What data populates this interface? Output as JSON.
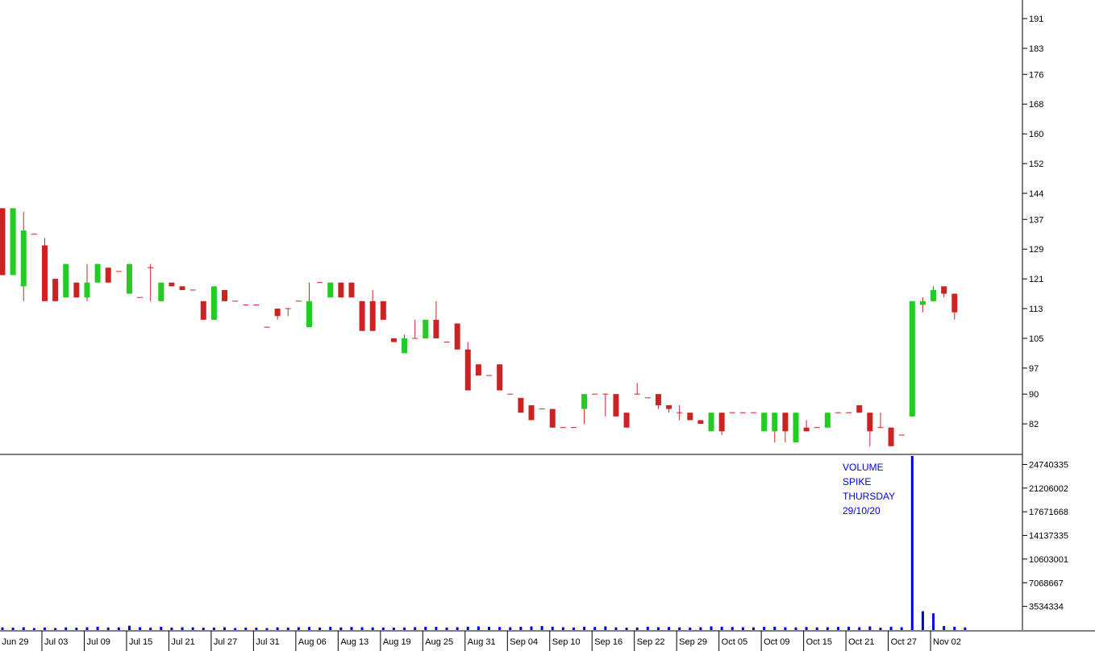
{
  "colors": {
    "background": "#ffffff",
    "up_candle": "#22cc22",
    "down_candle": "#cc2222",
    "wick": "#cc2222",
    "volume": "#0000ee",
    "axis": "#000000",
    "annotation": "#0000ee"
  },
  "annotation": {
    "lines": [
      "VOLUME",
      "SPIKE",
      "THURSDAY",
      "29/10/20"
    ]
  },
  "chart_data": [
    {
      "type": "candlestick",
      "name": "price",
      "y_axis_side": "right",
      "ylim": [
        74,
        196
      ],
      "yticks": [
        "191",
        "183",
        "176",
        "168",
        "160",
        "152",
        "144",
        "137",
        "129",
        "121",
        "113",
        "105",
        "97",
        "90",
        "82"
      ],
      "ytick_values": [
        191,
        183,
        176,
        168,
        160,
        152,
        144,
        137,
        129,
        121,
        113,
        105,
        97,
        90,
        82
      ],
      "x_labels": [
        "Jun 29",
        "Jul 03",
        "Jul 09",
        "Jul 15",
        "Jul 21",
        "Jul 27",
        "Jul 31",
        "Aug 06",
        "Aug 13",
        "Aug 19",
        "Aug 25",
        "Aug 31",
        "Sep 04",
        "Sep 10",
        "Sep 16",
        "Sep 22",
        "Sep 29",
        "Oct 05",
        "Oct 09",
        "Oct 15",
        "Oct 21",
        "Oct 27",
        "Nov 02"
      ],
      "candles": [
        {
          "o": 140,
          "h": 140,
          "l": 122,
          "c": 122
        },
        {
          "o": 122,
          "h": 140,
          "l": 122,
          "c": 140
        },
        {
          "o": 119,
          "h": 139,
          "l": 115,
          "c": 134
        },
        {
          "o": 133,
          "h": 133,
          "l": 133,
          "c": 133
        },
        {
          "o": 130,
          "h": 132,
          "l": 115,
          "c": 115
        },
        {
          "o": 121,
          "h": 121,
          "l": 115,
          "c": 115
        },
        {
          "o": 116,
          "h": 125,
          "l": 116,
          "c": 125
        },
        {
          "o": 120,
          "h": 120,
          "l": 116,
          "c": 116
        },
        {
          "o": 116,
          "h": 125,
          "l": 115,
          "c": 120
        },
        {
          "o": 120,
          "h": 125,
          "l": 120,
          "c": 125
        },
        {
          "o": 124,
          "h": 124,
          "l": 120,
          "c": 120
        },
        {
          "o": 123,
          "h": 123,
          "l": 123,
          "c": 123
        },
        {
          "o": 117,
          "h": 125,
          "l": 117,
          "c": 125
        },
        {
          "o": 116,
          "h": 116,
          "l": 116,
          "c": 116
        },
        {
          "o": 124,
          "h": 125,
          "l": 115,
          "c": 124
        },
        {
          "o": 115,
          "h": 120,
          "l": 115,
          "c": 120
        },
        {
          "o": 120,
          "h": 120,
          "l": 119,
          "c": 119
        },
        {
          "o": 119,
          "h": 119,
          "l": 118,
          "c": 118
        },
        {
          "o": 118,
          "h": 118,
          "l": 118,
          "c": 118
        },
        {
          "o": 115,
          "h": 115,
          "l": 110,
          "c": 110
        },
        {
          "o": 110,
          "h": 119,
          "l": 110,
          "c": 119
        },
        {
          "o": 118,
          "h": 118,
          "l": 115,
          "c": 115
        },
        {
          "o": 115,
          "h": 115,
          "l": 115,
          "c": 115
        },
        {
          "o": 114,
          "h": 114,
          "l": 114,
          "c": 114
        },
        {
          "o": 114,
          "h": 114,
          "l": 114,
          "c": 114
        },
        {
          "o": 108,
          "h": 108,
          "l": 108,
          "c": 108
        },
        {
          "o": 113,
          "h": 113,
          "l": 110,
          "c": 111
        },
        {
          "o": 113,
          "h": 113,
          "l": 111,
          "c": 113
        },
        {
          "o": 115,
          "h": 115,
          "l": 115,
          "c": 115
        },
        {
          "o": 108,
          "h": 120,
          "l": 108,
          "c": 115
        },
        {
          "o": 120,
          "h": 120,
          "l": 120,
          "c": 120
        },
        {
          "o": 116,
          "h": 120,
          "l": 116,
          "c": 120
        },
        {
          "o": 120,
          "h": 120,
          "l": 116,
          "c": 116
        },
        {
          "o": 120,
          "h": 120,
          "l": 116,
          "c": 116
        },
        {
          "o": 115,
          "h": 115,
          "l": 107,
          "c": 107
        },
        {
          "o": 115,
          "h": 118,
          "l": 107,
          "c": 107
        },
        {
          "o": 115,
          "h": 115,
          "l": 110,
          "c": 110
        },
        {
          "o": 105,
          "h": 105,
          "l": 104,
          "c": 104
        },
        {
          "o": 101,
          "h": 106,
          "l": 101,
          "c": 105
        },
        {
          "o": 105,
          "h": 110,
          "l": 105,
          "c": 105
        },
        {
          "o": 105,
          "h": 110,
          "l": 105,
          "c": 110
        },
        {
          "o": 110,
          "h": 115,
          "l": 105,
          "c": 105
        },
        {
          "o": 104,
          "h": 104,
          "l": 104,
          "c": 104
        },
        {
          "o": 109,
          "h": 109,
          "l": 102,
          "c": 102
        },
        {
          "o": 102,
          "h": 104,
          "l": 91,
          "c": 91
        },
        {
          "o": 98,
          "h": 98,
          "l": 95,
          "c": 95
        },
        {
          "o": 95,
          "h": 95,
          "l": 95,
          "c": 95
        },
        {
          "o": 98,
          "h": 98,
          "l": 91,
          "c": 91
        },
        {
          "o": 90,
          "h": 90,
          "l": 90,
          "c": 90
        },
        {
          "o": 89,
          "h": 89,
          "l": 85,
          "c": 85
        },
        {
          "o": 87,
          "h": 87,
          "l": 83,
          "c": 83
        },
        {
          "o": 86,
          "h": 86,
          "l": 86,
          "c": 86
        },
        {
          "o": 86,
          "h": 86,
          "l": 81,
          "c": 81
        },
        {
          "o": 81,
          "h": 81,
          "l": 81,
          "c": 81
        },
        {
          "o": 81,
          "h": 81,
          "l": 81,
          "c": 81
        },
        {
          "o": 86,
          "h": 90,
          "l": 82,
          "c": 90
        },
        {
          "o": 90,
          "h": 90,
          "l": 90,
          "c": 90
        },
        {
          "o": 90,
          "h": 90,
          "l": 84,
          "c": 90
        },
        {
          "o": 90,
          "h": 90,
          "l": 84,
          "c": 84
        },
        {
          "o": 85,
          "h": 85,
          "l": 81,
          "c": 81
        },
        {
          "o": 90,
          "h": 93,
          "l": 90,
          "c": 90
        },
        {
          "o": 89,
          "h": 89,
          "l": 89,
          "c": 89
        },
        {
          "o": 90,
          "h": 90,
          "l": 86,
          "c": 87
        },
        {
          "o": 87,
          "h": 87,
          "l": 85,
          "c": 86
        },
        {
          "o": 85,
          "h": 87,
          "l": 83,
          "c": 85
        },
        {
          "o": 85,
          "h": 85,
          "l": 83,
          "c": 83
        },
        {
          "o": 83,
          "h": 83,
          "l": 82,
          "c": 82
        },
        {
          "o": 80,
          "h": 85,
          "l": 80,
          "c": 85
        },
        {
          "o": 85,
          "h": 85,
          "l": 79,
          "c": 80
        },
        {
          "o": 85,
          "h": 85,
          "l": 85,
          "c": 85
        },
        {
          "o": 85,
          "h": 85,
          "l": 85,
          "c": 85
        },
        {
          "o": 85,
          "h": 85,
          "l": 85,
          "c": 85
        },
        {
          "o": 80,
          "h": 85,
          "l": 80,
          "c": 85
        },
        {
          "o": 80,
          "h": 85,
          "l": 77,
          "c": 85
        },
        {
          "o": 85,
          "h": 85,
          "l": 77,
          "c": 80
        },
        {
          "o": 77,
          "h": 85,
          "l": 77,
          "c": 85
        },
        {
          "o": 81,
          "h": 83,
          "l": 80,
          "c": 80
        },
        {
          "o": 81,
          "h": 81,
          "l": 81,
          "c": 81
        },
        {
          "o": 81,
          "h": 85,
          "l": 81,
          "c": 85
        },
        {
          "o": 85,
          "h": 85,
          "l": 85,
          "c": 85
        },
        {
          "o": 85,
          "h": 85,
          "l": 85,
          "c": 85
        },
        {
          "o": 87,
          "h": 87,
          "l": 85,
          "c": 85
        },
        {
          "o": 85,
          "h": 85,
          "l": 76,
          "c": 80
        },
        {
          "o": 81,
          "h": 85,
          "l": 81,
          "c": 81
        },
        {
          "o": 81,
          "h": 81,
          "l": 76,
          "c": 76
        },
        {
          "o": 79,
          "h": 79,
          "l": 79,
          "c": 79
        },
        {
          "o": 84,
          "h": 115,
          "l": 84,
          "c": 115
        },
        {
          "o": 114,
          "h": 116,
          "l": 112,
          "c": 115
        },
        {
          "o": 115,
          "h": 119,
          "l": 115,
          "c": 118
        },
        {
          "o": 119,
          "h": 119,
          "l": 116,
          "c": 117
        },
        {
          "o": 117,
          "h": 117,
          "l": 110,
          "c": 112
        }
      ]
    },
    {
      "type": "bar",
      "name": "volume",
      "y_axis_side": "right",
      "ylim": [
        0,
        26000000
      ],
      "yticks": [
        "24740335",
        "21206002",
        "17671668",
        "14137335",
        "10603001",
        "7068667",
        "3534334"
      ],
      "ytick_values": [
        24740335,
        21206002,
        17671668,
        14137335,
        10603001,
        7068667,
        3534334
      ],
      "values": [
        400000,
        350000,
        420000,
        300000,
        380000,
        300000,
        400000,
        350000,
        420000,
        500000,
        380000,
        400000,
        650000,
        420000,
        350000,
        500000,
        380000,
        420000,
        400000,
        350000,
        380000,
        420000,
        300000,
        350000,
        350000,
        300000,
        400000,
        350000,
        420000,
        450000,
        380000,
        500000,
        400000,
        450000,
        420000,
        400000,
        380000,
        350000,
        380000,
        420000,
        500000,
        480000,
        380000,
        420000,
        500000,
        550000,
        500000,
        450000,
        420000,
        480000,
        550000,
        600000,
        500000,
        420000,
        380000,
        500000,
        450000,
        550000,
        400000,
        350000,
        380000,
        500000,
        420000,
        450000,
        400000,
        380000,
        420000,
        550000,
        500000,
        450000,
        420000,
        400000,
        480000,
        500000,
        420000,
        400000,
        450000,
        400000,
        420000,
        450000,
        500000,
        420000,
        550000,
        350000,
        500000,
        420000,
        27000000,
        2800000,
        2500000,
        600000,
        500000,
        400000
      ]
    }
  ]
}
